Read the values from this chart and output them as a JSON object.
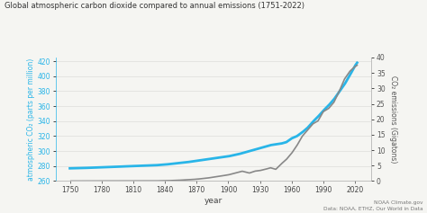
{
  "title": "Global atmospheric carbon dioxide compared to annual emissions (1751-2022)",
  "xlabel": "year",
  "ylabel_left": "atmospheric CO₂ (parts per million)",
  "ylabel_right": "CO₂ emissions (Gigatons)",
  "left_color": "#29b5e8",
  "right_color": "#888888",
  "bg_color": "#f5f5f2",
  "ylim_left": [
    260,
    425
  ],
  "ylim_right": [
    0,
    40
  ],
  "yticks_left": [
    260,
    280,
    300,
    320,
    340,
    360,
    380,
    400,
    420
  ],
  "yticks_right": [
    0,
    5,
    10,
    15,
    20,
    25,
    30,
    35,
    40
  ],
  "xticks": [
    1750,
    1780,
    1810,
    1840,
    1870,
    1900,
    1930,
    1960,
    1990,
    2020
  ],
  "source_text": "NOAA Climate.gov\nData: NOAA, ETHZ, Our World in Data",
  "co2_atm": {
    "years": [
      1750,
      1760,
      1770,
      1780,
      1790,
      1800,
      1810,
      1820,
      1830,
      1840,
      1850,
      1860,
      1870,
      1880,
      1890,
      1900,
      1910,
      1920,
      1930,
      1940,
      1950,
      1955,
      1960,
      1965,
      1970,
      1975,
      1980,
      1985,
      1990,
      1995,
      2000,
      2005,
      2010,
      2015,
      2020,
      2022
    ],
    "values": [
      277,
      277.3,
      277.8,
      278.2,
      278.7,
      279.5,
      280,
      280.5,
      281,
      282,
      283.5,
      285,
      287,
      289,
      291,
      293,
      296,
      300,
      304,
      308,
      310,
      312,
      317,
      320,
      325,
      331,
      339,
      346,
      354,
      361,
      369,
      379,
      389,
      401,
      414,
      418
    ]
  },
  "co2_emissions": {
    "years": [
      1751,
      1760,
      1770,
      1780,
      1790,
      1800,
      1810,
      1820,
      1830,
      1840,
      1850,
      1860,
      1870,
      1880,
      1890,
      1900,
      1910,
      1913,
      1920,
      1925,
      1930,
      1935,
      1940,
      1945,
      1950,
      1955,
      1960,
      1965,
      1970,
      1975,
      1980,
      1985,
      1990,
      1995,
      2000,
      2005,
      2010,
      2015,
      2019,
      2022
    ],
    "values": [
      0.009,
      0.011,
      0.014,
      0.016,
      0.018,
      0.02,
      0.026,
      0.032,
      0.048,
      0.09,
      0.2,
      0.38,
      0.6,
      0.95,
      1.5,
      2.0,
      2.9,
      3.2,
      2.6,
      3.2,
      3.4,
      3.8,
      4.3,
      3.8,
      5.5,
      7.0,
      9.0,
      11.5,
      14.5,
      16.5,
      18.5,
      19.5,
      22.5,
      23.5,
      25.5,
      29.0,
      33.0,
      35.5,
      36.8,
      37.5
    ]
  }
}
